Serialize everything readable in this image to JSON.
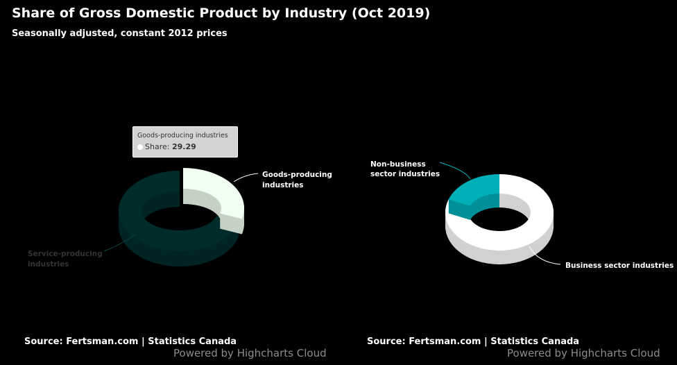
{
  "title": "Share of Gross Domestic Product by Industry (Oct 2019)",
  "subtitle": "Seasonally adjusted, constant 2012 prices",
  "chart_data": [
    {
      "type": "pie",
      "variant": "3d-donut",
      "series_name": "Share",
      "categories": [
        "Goods-producing industries",
        "Service-producing industries"
      ],
      "values": [
        29.29,
        70.71
      ],
      "colors": [
        "#f0fff0",
        "#013a3a"
      ],
      "highlighted": "Goods-producing industries"
    },
    {
      "type": "pie",
      "variant": "3d-donut",
      "categories": [
        "Business sector industries",
        "Non-business sector industries"
      ],
      "values": [
        80.5,
        19.5
      ],
      "colors": [
        "#ffffff",
        "#00b0b8"
      ]
    }
  ],
  "tooltip": {
    "title": "Goods-producing industries",
    "label": "Share:",
    "value": "29.29"
  },
  "labels_left": {
    "goods_1": "Goods-producing",
    "goods_2": "industries",
    "service_1": "Service-producing",
    "service_2": "industries"
  },
  "labels_right": {
    "nonbiz_1": "Non-business",
    "nonbiz_2": "sector industries",
    "biz": "Business sector industries"
  },
  "credits": {
    "source": "Source: Fertsman.com | Statistics Canada",
    "powered": "Powered by Highcharts Cloud"
  }
}
